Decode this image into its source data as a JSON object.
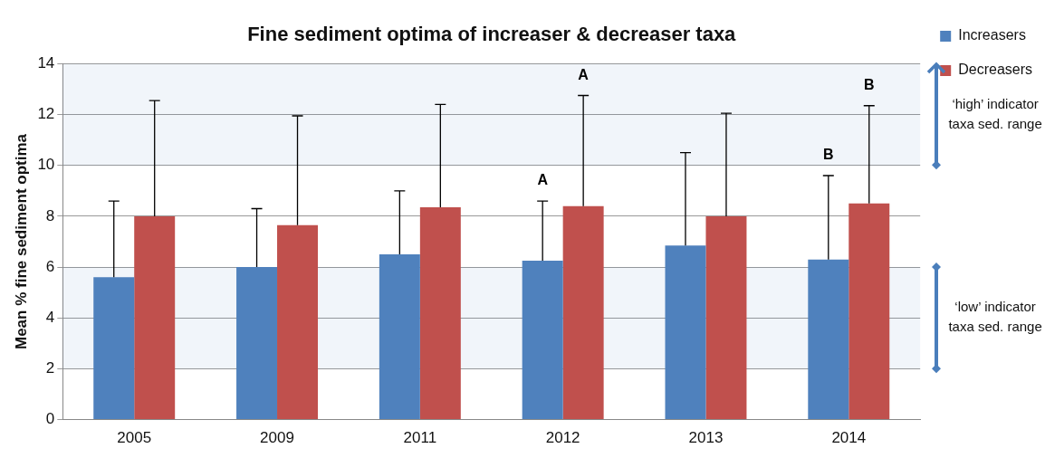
{
  "chart_data": {
    "type": "bar",
    "title": "Fine sediment optima of increaser & decreaser taxa",
    "ylabel": "Mean % fine sediment optima",
    "categories": [
      "2005",
      "2009",
      "2011",
      "2012",
      "2013",
      "2014"
    ],
    "series": [
      {
        "name": "Increasers",
        "color": "#4f81bd",
        "values": [
          5.6,
          6.0,
          6.5,
          6.25,
          6.85,
          6.3
        ],
        "errors": [
          [
            5.6,
            8.6
          ],
          [
            6.0,
            8.3
          ],
          [
            6.5,
            9.0
          ],
          [
            6.25,
            8.6
          ],
          [
            6.85,
            10.5
          ],
          [
            6.3,
            9.6
          ]
        ]
      },
      {
        "name": "Decreasers",
        "color": "#c0504d",
        "values": [
          8.0,
          7.65,
          8.35,
          8.4,
          8.0,
          8.5
        ],
        "errors": [
          [
            8.0,
            12.55
          ],
          [
            7.65,
            11.95
          ],
          [
            8.35,
            12.4
          ],
          [
            8.4,
            12.75
          ],
          [
            8.0,
            12.05
          ],
          [
            8.5,
            12.35
          ]
        ]
      }
    ],
    "ylim": [
      0,
      14
    ],
    "yticks": [
      0,
      2,
      4,
      6,
      8,
      10,
      12,
      14
    ],
    "grid": "y",
    "legend": "top right",
    "annotations": [
      "A",
      "A",
      "B",
      "B"
    ],
    "bands": [
      {
        "axis": "y",
        "from": 10,
        "to": 14,
        "label": "‘high’ indicator taxa sed. range",
        "color": "#4a7ebb"
      },
      {
        "axis": "y",
        "from": 2,
        "to": 6,
        "label": "‘low’ indicator taxa sed. range",
        "color": "#4a7ebb"
      }
    ]
  }
}
